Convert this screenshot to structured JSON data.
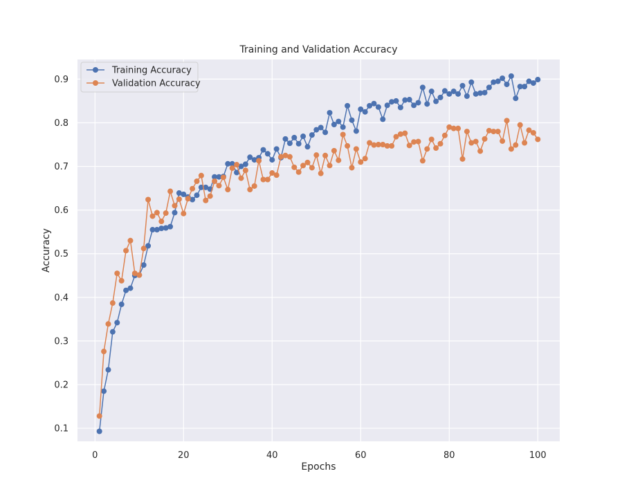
{
  "chart_data": {
    "type": "line",
    "title": "Training and Validation Accuracy",
    "xlabel": "Epochs",
    "ylabel": "Accuracy",
    "xlim": [
      -3.95,
      104.95
    ],
    "ylim": [
      0.07,
      0.945
    ],
    "xticks": [
      0,
      20,
      40,
      60,
      80,
      100
    ],
    "yticks": [
      0.1,
      0.2,
      0.3,
      0.4,
      0.5,
      0.6,
      0.7,
      0.8,
      0.9
    ],
    "grid": true,
    "legend_position": "upper-left",
    "background": "#eaeaf2",
    "series": [
      {
        "name": "Training Accuracy",
        "color": "#4c72b0",
        "marker": "circle",
        "values": [
          0.093,
          0.185,
          0.234,
          0.321,
          0.342,
          0.384,
          0.416,
          0.421,
          0.45,
          0.451,
          0.474,
          0.518,
          0.555,
          0.555,
          0.558,
          0.559,
          0.562,
          0.594,
          0.639,
          0.636,
          0.63,
          0.624,
          0.634,
          0.652,
          0.652,
          0.648,
          0.676,
          0.676,
          0.677,
          0.706,
          0.706,
          0.686,
          0.7,
          0.705,
          0.721,
          0.715,
          0.72,
          0.738,
          0.729,
          0.715,
          0.74,
          0.72,
          0.763,
          0.753,
          0.766,
          0.752,
          0.769,
          0.745,
          0.772,
          0.784,
          0.789,
          0.778,
          0.823,
          0.796,
          0.803,
          0.79,
          0.839,
          0.806,
          0.781,
          0.831,
          0.825,
          0.839,
          0.844,
          0.836,
          0.808,
          0.84,
          0.848,
          0.85,
          0.835,
          0.852,
          0.853,
          0.84,
          0.846,
          0.881,
          0.843,
          0.872,
          0.849,
          0.858,
          0.873,
          0.866,
          0.872,
          0.866,
          0.885,
          0.861,
          0.893,
          0.866,
          0.868,
          0.869,
          0.881,
          0.893,
          0.895,
          0.902,
          0.888,
          0.907,
          0.856,
          0.883,
          0.883,
          0.895,
          0.891,
          0.899
        ]
      },
      {
        "name": "Validation Accuracy",
        "color": "#dd8452",
        "marker": "circle",
        "values": [
          0.128,
          0.276,
          0.339,
          0.387,
          0.455,
          0.438,
          0.507,
          0.53,
          0.455,
          0.451,
          0.512,
          0.624,
          0.586,
          0.594,
          0.574,
          0.593,
          0.643,
          0.61,
          0.625,
          0.592,
          0.626,
          0.649,
          0.666,
          0.679,
          0.622,
          0.632,
          0.666,
          0.656,
          0.675,
          0.647,
          0.696,
          0.704,
          0.673,
          0.691,
          0.647,
          0.655,
          0.713,
          0.67,
          0.67,
          0.685,
          0.68,
          0.722,
          0.725,
          0.722,
          0.698,
          0.687,
          0.702,
          0.709,
          0.697,
          0.726,
          0.684,
          0.725,
          0.702,
          0.736,
          0.714,
          0.773,
          0.747,
          0.697,
          0.74,
          0.71,
          0.718,
          0.754,
          0.749,
          0.75,
          0.75,
          0.747,
          0.747,
          0.768,
          0.774,
          0.776,
          0.748,
          0.756,
          0.757,
          0.713,
          0.74,
          0.762,
          0.742,
          0.752,
          0.771,
          0.79,
          0.787,
          0.787,
          0.717,
          0.78,
          0.754,
          0.757,
          0.735,
          0.763,
          0.782,
          0.78,
          0.78,
          0.758,
          0.805,
          0.74,
          0.749,
          0.795,
          0.754,
          0.783,
          0.777,
          0.762
        ]
      }
    ]
  }
}
